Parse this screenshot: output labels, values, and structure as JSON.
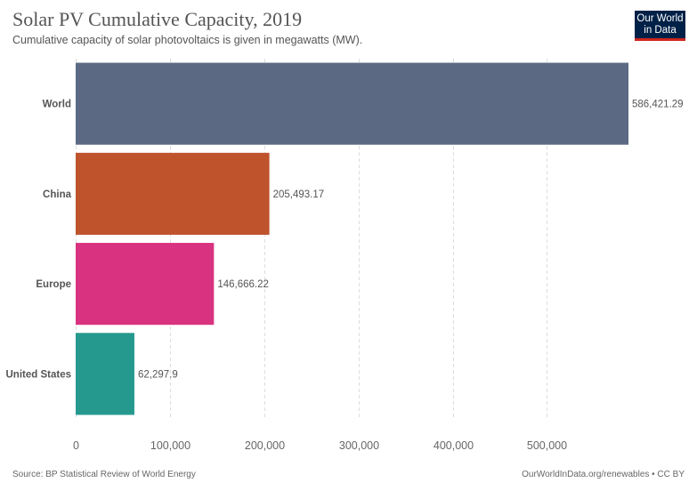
{
  "header": {
    "title": "Solar PV Cumulative Capacity, 2019",
    "subtitle": "Cumulative capacity of solar photovoltaics is given in megawatts (MW).",
    "logo_line1": "Our World",
    "logo_line2": "in Data"
  },
  "footer": {
    "source": "Source: BP Statistical Review of World Energy",
    "url": "OurWorldInData.org/renewables • CC BY"
  },
  "colors": {
    "logo_bg": "#002147",
    "logo_accent": "#ce261e"
  },
  "chart_data": {
    "type": "bar",
    "orientation": "horizontal",
    "categories": [
      "World",
      "China",
      "Europe",
      "United States"
    ],
    "values": [
      586421.29,
      205493.17,
      146666.22,
      62297.9
    ],
    "value_labels": [
      "586,421.29",
      "205,493.17",
      "146,666.22",
      "62,297.9"
    ],
    "colors": [
      "#5b6983",
      "#be532c",
      "#d93280",
      "#26998f"
    ],
    "xlim": [
      0,
      586421.29
    ],
    "xticks": [
      0,
      100000,
      200000,
      300000,
      400000,
      500000
    ],
    "xtick_labels": [
      "0",
      "100,000",
      "200,000",
      "300,000",
      "400,000",
      "500,000"
    ],
    "grid": true
  }
}
